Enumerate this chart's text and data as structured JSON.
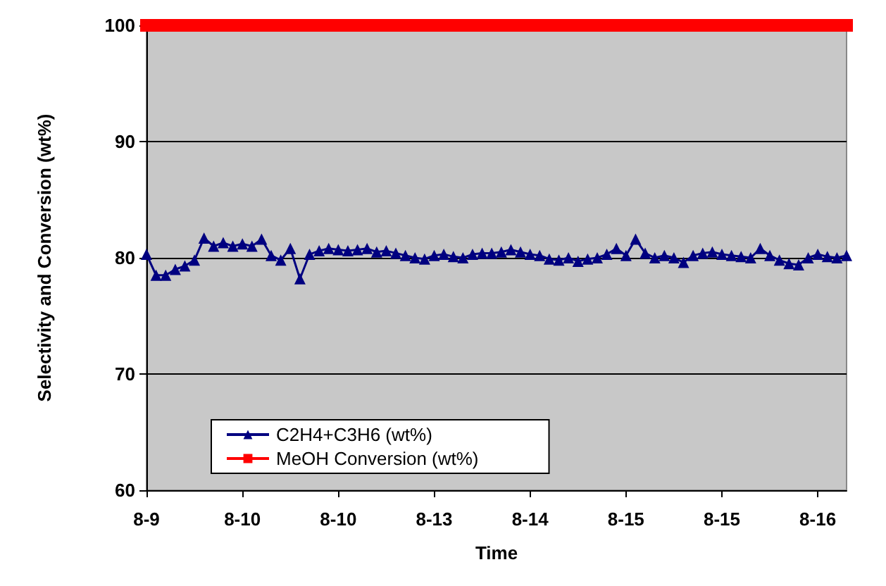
{
  "chart_data": {
    "type": "line",
    "xlabel": "Time",
    "ylabel": "Selectivity and Conversion (wt%)",
    "categories": [
      "8-9",
      null,
      null,
      null,
      null,
      null,
      null,
      null,
      null,
      null,
      "8-10",
      null,
      null,
      null,
      null,
      null,
      null,
      null,
      null,
      null,
      "8-10",
      null,
      null,
      null,
      null,
      null,
      null,
      null,
      null,
      null,
      "8-13",
      null,
      null,
      null,
      null,
      null,
      null,
      null,
      null,
      null,
      "8-14",
      null,
      null,
      null,
      null,
      null,
      null,
      null,
      null,
      null,
      "8-15",
      null,
      null,
      null,
      null,
      null,
      null,
      null,
      null,
      null,
      "8-15",
      null,
      null,
      null,
      null,
      null,
      null,
      null,
      null,
      null,
      "8-16",
      null,
      null,
      null
    ],
    "ylim": [
      60,
      100
    ],
    "yticks": [
      60,
      70,
      80,
      90,
      100
    ],
    "grid": "y",
    "legend": "bottom left",
    "line_style": "solid",
    "series": [
      {
        "name": "C2H4+C3H6 (wt%)",
        "color": "#000080",
        "marker": "triangle",
        "values": [
          80.3,
          78.5,
          78.5,
          79.0,
          79.3,
          79.8,
          81.7,
          81.0,
          81.3,
          81.0,
          81.2,
          81.0,
          81.6,
          80.2,
          79.8,
          80.8,
          78.2,
          80.3,
          80.6,
          80.8,
          80.7,
          80.6,
          80.7,
          80.8,
          80.5,
          80.6,
          80.4,
          80.2,
          80.0,
          79.9,
          80.2,
          80.3,
          80.1,
          80.0,
          80.3,
          80.4,
          80.4,
          80.5,
          80.7,
          80.5,
          80.3,
          80.2,
          79.9,
          79.8,
          80.0,
          79.7,
          79.9,
          80.0,
          80.3,
          80.8,
          80.2,
          81.6,
          80.4,
          80.0,
          80.2,
          80.0,
          79.6,
          80.2,
          80.4,
          80.5,
          80.3,
          80.2,
          80.1,
          80.0,
          80.8,
          80.2,
          79.8,
          79.5,
          79.4,
          80.0,
          80.3,
          80.1,
          80.0,
          80.2
        ]
      },
      {
        "name": "MeOH Conversion (wt%)",
        "color": "#ff0000",
        "marker": "square",
        "values": [
          100,
          100,
          100,
          100,
          100,
          100,
          100,
          100,
          100,
          100,
          100,
          100,
          100,
          100,
          100,
          100,
          100,
          100,
          100,
          100,
          100,
          100,
          100,
          100,
          100,
          100,
          100,
          100,
          100,
          100,
          100,
          100,
          100,
          100,
          100,
          100,
          100,
          100,
          100,
          100,
          100,
          100,
          100,
          100,
          100,
          100,
          100,
          100,
          100,
          100,
          100,
          100,
          100,
          100,
          100,
          100,
          100,
          100,
          100,
          100,
          100,
          100,
          100,
          100,
          100,
          100,
          100,
          100,
          100,
          100,
          100,
          100,
          100,
          100
        ]
      }
    ]
  }
}
